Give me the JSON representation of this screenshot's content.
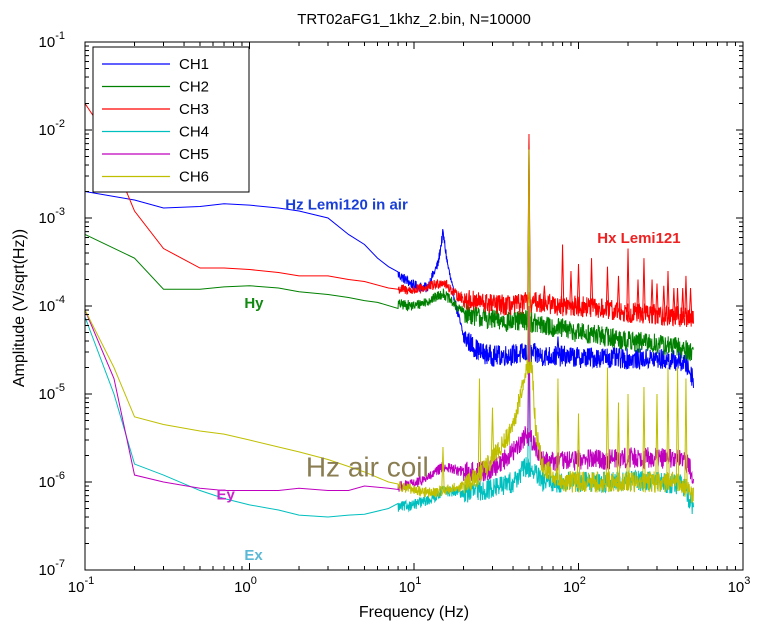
{
  "chart_data": {
    "type": "line",
    "title": "TRT02aFG1_1khz_2.bin,   N=10000",
    "xlabel": "Frequency  (Hz)",
    "ylabel": "Amplitude  (V/sqrt(Hz))",
    "x_scale": "log",
    "y_scale": "log",
    "xlim": [
      0.1,
      1000
    ],
    "ylim": [
      1e-07,
      0.1
    ],
    "x_ticks": [
      {
        "base": "10",
        "exp": "-1",
        "value": 0.1
      },
      {
        "base": "10",
        "exp": "0",
        "value": 1
      },
      {
        "base": "10",
        "exp": "1",
        "value": 10
      },
      {
        "base": "10",
        "exp": "2",
        "value": 100
      },
      {
        "base": "10",
        "exp": "3",
        "value": 1000
      }
    ],
    "y_ticks": [
      {
        "base": "10",
        "exp": "-7",
        "value": 1e-07
      },
      {
        "base": "10",
        "exp": "-6",
        "value": 1e-06
      },
      {
        "base": "10",
        "exp": "-5",
        "value": 1e-05
      },
      {
        "base": "10",
        "exp": "-4",
        "value": 0.0001
      },
      {
        "base": "10",
        "exp": "-3",
        "value": 0.001
      },
      {
        "base": "10",
        "exp": "-2",
        "value": 0.01
      },
      {
        "base": "10",
        "exp": "-1",
        "value": 0.1
      }
    ],
    "legend_position": "top-left",
    "grid": false,
    "series": [
      {
        "name": "CH1",
        "color": "#0000ff",
        "points": [
          [
            0.1,
            0.002
          ],
          [
            0.2,
            0.0016
          ],
          [
            0.3,
            0.0013
          ],
          [
            0.5,
            0.00135
          ],
          [
            0.7,
            0.00145
          ],
          [
            1,
            0.0014
          ],
          [
            1.5,
            0.0013
          ],
          [
            2,
            0.0012
          ],
          [
            3,
            0.001
          ],
          [
            4,
            0.00065
          ],
          [
            5,
            0.0005
          ],
          [
            6,
            0.00035
          ],
          [
            7,
            0.00028
          ],
          [
            8,
            0.00023
          ],
          [
            10,
            0.00017
          ],
          [
            12,
            0.00016
          ],
          [
            14,
            0.0003
          ],
          [
            15,
            0.00068
          ],
          [
            16,
            0.0003
          ],
          [
            18,
            0.0001
          ],
          [
            20,
            4.5e-05
          ],
          [
            25,
            3e-05
          ],
          [
            30,
            2.7e-05
          ],
          [
            40,
            2.8e-05
          ],
          [
            48,
            2.9e-05
          ],
          [
            50,
            0.004
          ],
          [
            52,
            2.9e-05
          ],
          [
            60,
            2.7e-05
          ],
          [
            80,
            2.7e-05
          ],
          [
            100,
            2.6e-05
          ],
          [
            150,
            2.6e-05
          ],
          [
            200,
            2.5e-05
          ],
          [
            300,
            2.5e-05
          ],
          [
            400,
            2.4e-05
          ],
          [
            450,
            2.2e-05
          ],
          [
            500,
            1.5e-05
          ]
        ],
        "spikes": [
          [
            50,
            0.004
          ],
          [
            75,
            4.5e-05
          ]
        ]
      },
      {
        "name": "CH2",
        "color": "#008000",
        "points": [
          [
            0.1,
            0.00065
          ],
          [
            0.2,
            0.00035
          ],
          [
            0.3,
            0.000155
          ],
          [
            0.5,
            0.000155
          ],
          [
            0.7,
            0.000165
          ],
          [
            1,
            0.00017
          ],
          [
            1.5,
            0.00016
          ],
          [
            2,
            0.000145
          ],
          [
            3,
            0.000135
          ],
          [
            4,
            0.000125
          ],
          [
            5,
            0.000115
          ],
          [
            6,
            0.00011
          ],
          [
            8,
            0.000105
          ],
          [
            10,
            0.0001
          ],
          [
            13,
            0.00012
          ],
          [
            15,
            0.00014
          ],
          [
            18,
            0.0001
          ],
          [
            20,
            8.5e-05
          ],
          [
            25,
            7.5e-05
          ],
          [
            30,
            7e-05
          ],
          [
            40,
            6.5e-05
          ],
          [
            48,
            7e-05
          ],
          [
            50,
            0.008
          ],
          [
            52,
            6.5e-05
          ],
          [
            60,
            6e-05
          ],
          [
            80,
            5.5e-05
          ],
          [
            100,
            5e-05
          ],
          [
            150,
            4.5e-05
          ],
          [
            200,
            4e-05
          ],
          [
            300,
            3.7e-05
          ],
          [
            400,
            3.4e-05
          ],
          [
            500,
            3e-05
          ]
        ],
        "spikes": [
          [
            50,
            0.008
          ]
        ]
      },
      {
        "name": "CH3",
        "color": "#ff0000",
        "points": [
          [
            0.1,
            0.02
          ],
          [
            0.12,
            0.012
          ],
          [
            0.2,
            0.0012
          ],
          [
            0.3,
            0.00045
          ],
          [
            0.5,
            0.00027
          ],
          [
            0.7,
            0.00027
          ],
          [
            1,
            0.00026
          ],
          [
            1.5,
            0.00024
          ],
          [
            2,
            0.00022
          ],
          [
            3,
            0.00022
          ],
          [
            4,
            0.0002
          ],
          [
            5,
            0.00019
          ],
          [
            7,
            0.00016
          ],
          [
            10,
            0.00015
          ],
          [
            13,
            0.00017
          ],
          [
            15,
            0.00019
          ],
          [
            18,
            0.000135
          ],
          [
            20,
            0.00012
          ],
          [
            25,
            0.00011
          ],
          [
            30,
            0.000105
          ],
          [
            40,
            0.0001
          ],
          [
            48,
            0.00011
          ],
          [
            50,
            0.009
          ],
          [
            52,
            0.00011
          ],
          [
            60,
            0.00011
          ],
          [
            80,
            0.0001
          ],
          [
            100,
            0.0001
          ],
          [
            150,
            9e-05
          ],
          [
            200,
            8.5e-05
          ],
          [
            300,
            8e-05
          ],
          [
            400,
            7.5e-05
          ],
          [
            500,
            7.5e-05
          ]
        ],
        "spikes": [
          [
            50,
            0.009
          ],
          [
            62,
            0.00017
          ],
          [
            80,
            0.0005
          ],
          [
            90,
            0.00025
          ],
          [
            100,
            0.0003
          ],
          [
            120,
            0.00035
          ],
          [
            150,
            0.00028
          ],
          [
            175,
            0.00022
          ],
          [
            200,
            0.00045
          ],
          [
            230,
            0.0002
          ],
          [
            250,
            0.00035
          ],
          [
            280,
            0.0002
          ],
          [
            300,
            0.00018
          ],
          [
            330,
            0.00017
          ],
          [
            350,
            0.00025
          ],
          [
            380,
            0.00016
          ],
          [
            400,
            0.00016
          ],
          [
            430,
            0.00016
          ],
          [
            450,
            0.00022
          ],
          [
            480,
            0.00016
          ]
        ]
      },
      {
        "name": "CH4",
        "color": "#00bfbf",
        "points": [
          [
            0.1,
            7.5e-05
          ],
          [
            0.15,
            1e-05
          ],
          [
            0.2,
            1.6e-06
          ],
          [
            0.3,
            1.2e-06
          ],
          [
            0.5,
            8e-07
          ],
          [
            0.7,
            6.5e-07
          ],
          [
            1,
            5.5e-07
          ],
          [
            1.5,
            4.8e-07
          ],
          [
            2,
            4.2e-07
          ],
          [
            3,
            4e-07
          ],
          [
            4,
            4.2e-07
          ],
          [
            5,
            4.3e-07
          ],
          [
            7,
            5e-07
          ],
          [
            10,
            5.5e-07
          ],
          [
            13,
            6.5e-07
          ],
          [
            15,
            8e-07
          ],
          [
            20,
            7.5e-07
          ],
          [
            25,
            8e-07
          ],
          [
            30,
            8.5e-07
          ],
          [
            40,
            1e-06
          ],
          [
            48,
            1.5e-06
          ],
          [
            50,
            5e-05
          ],
          [
            52,
            1.4e-06
          ],
          [
            60,
            1e-06
          ],
          [
            80,
            1e-06
          ],
          [
            100,
            1e-06
          ],
          [
            150,
            1e-06
          ],
          [
            200,
            1.05e-06
          ],
          [
            300,
            1e-06
          ],
          [
            400,
            9.5e-07
          ],
          [
            450,
            8.5e-07
          ],
          [
            500,
            4.5e-07
          ]
        ],
        "spikes": [
          [
            50,
            5e-05
          ]
        ]
      },
      {
        "name": "CH5",
        "color": "#bf00bf",
        "points": [
          [
            0.1,
            9e-05
          ],
          [
            0.15,
            1.5e-05
          ],
          [
            0.2,
            1.2e-06
          ],
          [
            0.3,
            1e-06
          ],
          [
            0.5,
            8.5e-07
          ],
          [
            0.7,
            8e-07
          ],
          [
            1,
            8e-07
          ],
          [
            1.5,
            8e-07
          ],
          [
            2,
            8.5e-07
          ],
          [
            3,
            8e-07
          ],
          [
            4,
            8e-07
          ],
          [
            5,
            9e-07
          ],
          [
            7,
            8.5e-07
          ],
          [
            10,
            9.5e-07
          ],
          [
            13,
            1.2e-06
          ],
          [
            15,
            1.5e-06
          ],
          [
            20,
            1.3e-06
          ],
          [
            25,
            1.3e-06
          ],
          [
            30,
            1.4e-06
          ],
          [
            40,
            2.2e-06
          ],
          [
            48,
            3.5e-06
          ],
          [
            50,
            0.0001
          ],
          [
            52,
            3e-06
          ],
          [
            60,
            1.8e-06
          ],
          [
            80,
            1.7e-06
          ],
          [
            100,
            1.8e-06
          ],
          [
            150,
            1.8e-06
          ],
          [
            200,
            1.9e-06
          ],
          [
            300,
            1.9e-06
          ],
          [
            400,
            1.8e-06
          ],
          [
            450,
            1.7e-06
          ],
          [
            500,
            1.2e-06
          ]
        ],
        "spikes": [
          [
            50,
            0.0001
          ]
        ]
      },
      {
        "name": "CH6",
        "color": "#bfbf00",
        "points": [
          [
            0.1,
            9e-05
          ],
          [
            0.15,
            2e-05
          ],
          [
            0.2,
            5.5e-06
          ],
          [
            0.3,
            4.5e-06
          ],
          [
            0.5,
            3.8e-06
          ],
          [
            0.7,
            3.5e-06
          ],
          [
            1,
            3e-06
          ],
          [
            1.5,
            2.5e-06
          ],
          [
            2,
            2.2e-06
          ],
          [
            3,
            1.8e-06
          ],
          [
            4,
            1.5e-06
          ],
          [
            5,
            1.3e-06
          ],
          [
            7,
            1e-06
          ],
          [
            10,
            8e-07
          ],
          [
            13,
            7.5e-07
          ],
          [
            15,
            8e-07
          ],
          [
            20,
            9e-07
          ],
          [
            25,
            1.2e-06
          ],
          [
            30,
            1.8e-06
          ],
          [
            40,
            4e-06
          ],
          [
            48,
            2e-05
          ],
          [
            50,
            0.006
          ],
          [
            52,
            2e-05
          ],
          [
            55,
            4e-06
          ],
          [
            60,
            1.5e-06
          ],
          [
            80,
            1e-06
          ],
          [
            100,
            1e-06
          ],
          [
            150,
            1e-06
          ],
          [
            200,
            1e-06
          ],
          [
            300,
            1e-06
          ],
          [
            400,
            1e-06
          ],
          [
            500,
            7e-07
          ]
        ],
        "spikes": [
          [
            50,
            0.006
          ],
          [
            15,
            2.5e-06
          ],
          [
            25,
            1.5e-05
          ],
          [
            30,
            7e-06
          ],
          [
            45,
            9e-06
          ],
          [
            75,
            1.5e-05
          ],
          [
            100,
            6e-06
          ],
          [
            150,
            2e-05
          ],
          [
            175,
            8e-06
          ],
          [
            200,
            1e-05
          ],
          [
            250,
            1.2e-05
          ],
          [
            300,
            1e-05
          ],
          [
            350,
            2e-05
          ],
          [
            400,
            2e-05
          ],
          [
            450,
            1.5e-05
          ]
        ]
      }
    ],
    "annotations": [
      {
        "text": "Hz Lemi120 in air",
        "color": "#1a3fd6",
        "x": 1.65,
        "y": 0.00125,
        "style": "bold"
      },
      {
        "text": "Hx Lemi121",
        "color": "#ee2222",
        "x": 130,
        "y": 0.00052,
        "style": "bold"
      },
      {
        "text": "Hy",
        "color": "#118a11",
        "x": 0.93,
        "y": 9.5e-05,
        "style": "bold"
      },
      {
        "text": "Hz air coil",
        "color": "#8a7d52",
        "x": 2.2,
        "y": 1.15e-06,
        "style": "big"
      },
      {
        "text": "Ey",
        "color": "#cc22cc",
        "x": 0.63,
        "y": 6.3e-07,
        "style": "bold"
      },
      {
        "text": "Ex",
        "color": "#5bb9d6",
        "x": 0.93,
        "y": 1.3e-07,
        "style": "bold"
      }
    ]
  }
}
